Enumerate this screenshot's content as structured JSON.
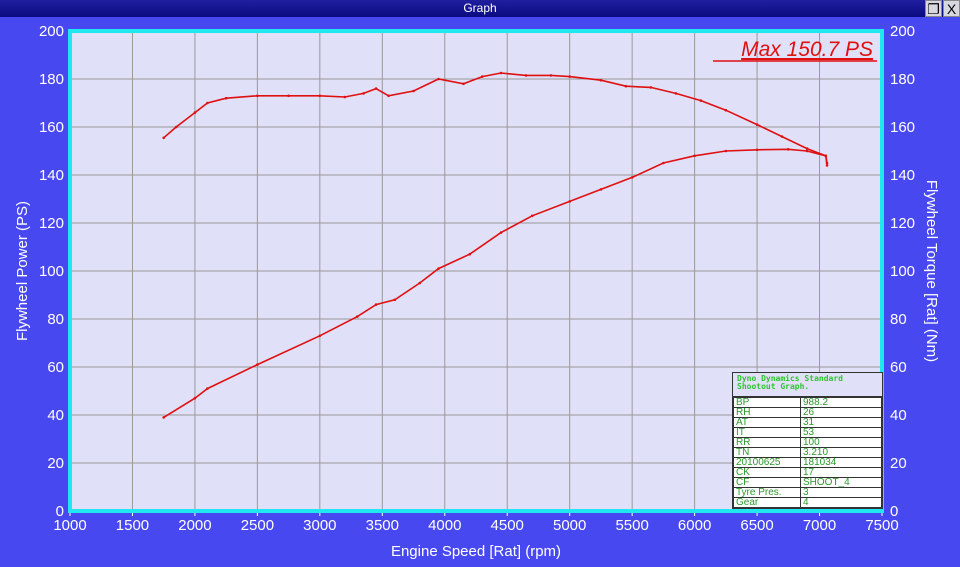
{
  "window": {
    "title": "Graph",
    "restore_icon": "restore-icon",
    "close_label": "X"
  },
  "chart_data": {
    "type": "line",
    "xlabel": "Engine Speed [Rat] (rpm)",
    "ylabel": "Flywheel Power (PS)",
    "y2label": "Flywheel Torque [Rat] (Nm)",
    "xlim": [
      1000,
      7500
    ],
    "ylim": [
      0,
      200
    ],
    "y2lim": [
      0,
      200
    ],
    "xticks": [
      1000,
      1500,
      2000,
      2500,
      3000,
      3500,
      4000,
      4500,
      5000,
      5500,
      6000,
      6500,
      7000,
      7500
    ],
    "yticks": [
      0,
      20,
      40,
      60,
      80,
      100,
      120,
      140,
      160,
      180,
      200
    ],
    "grid": true,
    "annotation": "Max 150.7 PS",
    "colors": {
      "series": "#e01010",
      "plot_bg": "#e0e0f8",
      "border": "#20e8f0",
      "window_bg": "#4848f0"
    },
    "series": [
      {
        "name": "Torque",
        "x": [
          1750,
          1850,
          2000,
          2100,
          2250,
          2500,
          2750,
          3000,
          3200,
          3350,
          3450,
          3550,
          3750,
          3950,
          4150,
          4300,
          4450,
          4650,
          4850,
          5000,
          5250,
          5450,
          5650,
          5850,
          6050,
          6250,
          6500,
          6700,
          6900,
          7050,
          7060
        ],
        "y": [
          155.5,
          160,
          166,
          170,
          172,
          173,
          173,
          173,
          172.5,
          174,
          176,
          173,
          175,
          180,
          178,
          181,
          182.5,
          181.5,
          181.5,
          181,
          179.5,
          177,
          176.5,
          174,
          171,
          167,
          161,
          156,
          151,
          148,
          144
        ]
      },
      {
        "name": "Power",
        "x": [
          1750,
          2000,
          2100,
          2500,
          3000,
          3300,
          3450,
          3600,
          3800,
          3950,
          4200,
          4450,
          4700,
          5000,
          5250,
          5500,
          5750,
          6000,
          6250,
          6500,
          6750,
          6900,
          7050,
          7060
        ],
        "y": [
          39,
          47,
          51,
          61,
          73,
          81,
          86,
          88,
          95,
          101,
          107,
          116,
          123,
          129,
          134,
          139,
          145,
          148,
          150,
          150.5,
          150.7,
          150,
          148,
          145
        ]
      }
    ]
  },
  "info_box": {
    "title_line1": "Dyno Dynamics Standard",
    "title_line2": "Shootout Graph.",
    "rows": [
      [
        "BP",
        "988.2"
      ],
      [
        "RH",
        "26"
      ],
      [
        "AT",
        "31"
      ],
      [
        "IT",
        "53"
      ],
      [
        "RR",
        "100"
      ],
      [
        "TN",
        "3.210"
      ],
      [
        "20100625",
        "181034"
      ],
      [
        "CK",
        "17"
      ],
      [
        "CF",
        "SHOOT_4"
      ],
      [
        "Tyre Pres.",
        "3"
      ],
      [
        "Gear",
        "4"
      ]
    ]
  }
}
